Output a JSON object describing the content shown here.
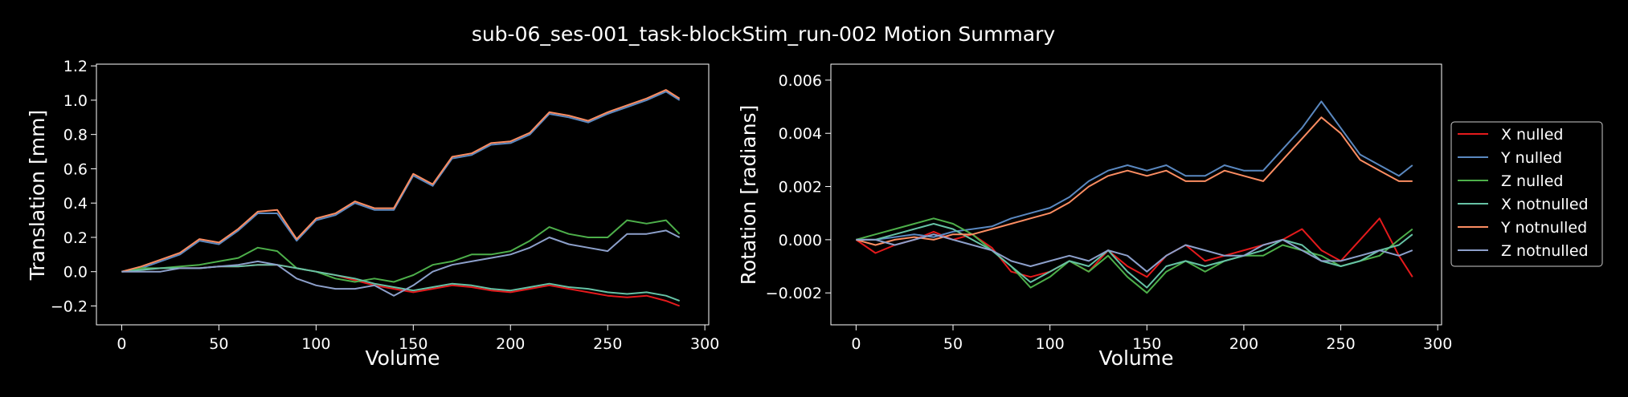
{
  "chart_data": {
    "title": "sub-06_ses-001_task-blockStim_run-002 Motion Summary",
    "legend": {
      "placement": "right",
      "entries": [
        "X nulled",
        "Y nulled",
        "Z nulled",
        "X notnulled",
        "Y notnulled",
        "Z notnulled"
      ]
    },
    "panels": [
      {
        "type": "line",
        "xlabel": "Volume",
        "ylabel": "Translation [mm]",
        "xlim": [
          -13,
          302
        ],
        "ylim": [
          -0.31,
          1.21
        ],
        "xticks": [
          0,
          50,
          100,
          150,
          200,
          250,
          300
        ],
        "yticks": [
          -0.2,
          0.0,
          0.2,
          0.4,
          0.6,
          0.8,
          1.0,
          1.2
        ],
        "ytick_decimals": 1,
        "grid": false,
        "series": [
          {
            "name": "X nulled",
            "color": "#e41a1c",
            "x": [
              0,
              10,
              20,
              30,
              40,
              50,
              60,
              70,
              80,
              90,
              100,
              110,
              120,
              130,
              140,
              150,
              160,
              170,
              180,
              190,
              200,
              210,
              220,
              230,
              240,
              250,
              260,
              270,
              280,
              287
            ],
            "y": [
              0.0,
              0.01,
              0.02,
              0.02,
              0.02,
              0.03,
              0.03,
              0.04,
              0.04,
              0.02,
              0.0,
              -0.02,
              -0.05,
              -0.08,
              -0.1,
              -0.12,
              -0.1,
              -0.08,
              -0.09,
              -0.11,
              -0.12,
              -0.1,
              -0.08,
              -0.1,
              -0.12,
              -0.14,
              -0.15,
              -0.14,
              -0.17,
              -0.2
            ]
          },
          {
            "name": "Y nulled",
            "color": "#5a88c0",
            "x": [
              0,
              10,
              20,
              30,
              40,
              50,
              60,
              70,
              80,
              90,
              100,
              110,
              120,
              130,
              140,
              150,
              160,
              170,
              180,
              190,
              200,
              210,
              220,
              230,
              240,
              250,
              260,
              270,
              280,
              287
            ],
            "y": [
              0.0,
              0.02,
              0.06,
              0.1,
              0.18,
              0.16,
              0.24,
              0.34,
              0.34,
              0.18,
              0.3,
              0.33,
              0.4,
              0.36,
              0.36,
              0.56,
              0.5,
              0.66,
              0.68,
              0.74,
              0.75,
              0.8,
              0.92,
              0.9,
              0.87,
              0.92,
              0.96,
              1.0,
              1.05,
              1.0
            ]
          },
          {
            "name": "Z nulled",
            "color": "#4daf4a",
            "x": [
              0,
              10,
              20,
              30,
              40,
              50,
              60,
              70,
              80,
              90,
              100,
              110,
              120,
              130,
              140,
              150,
              160,
              170,
              180,
              190,
              200,
              210,
              220,
              230,
              240,
              250,
              260,
              270,
              280,
              287
            ],
            "y": [
              0.0,
              0.02,
              0.02,
              0.03,
              0.04,
              0.06,
              0.08,
              0.14,
              0.12,
              0.02,
              0.0,
              -0.04,
              -0.06,
              -0.04,
              -0.06,
              -0.02,
              0.04,
              0.06,
              0.1,
              0.1,
              0.12,
              0.18,
              0.26,
              0.22,
              0.2,
              0.2,
              0.3,
              0.28,
              0.3,
              0.22
            ]
          },
          {
            "name": "X notnulled",
            "color": "#66c2a5",
            "x": [
              0,
              10,
              20,
              30,
              40,
              50,
              60,
              70,
              80,
              90,
              100,
              110,
              120,
              130,
              140,
              150,
              160,
              170,
              180,
              190,
              200,
              210,
              220,
              230,
              240,
              250,
              260,
              270,
              280,
              287
            ],
            "y": [
              0.0,
              0.01,
              0.02,
              0.02,
              0.02,
              0.03,
              0.03,
              0.04,
              0.04,
              0.02,
              0.0,
              -0.02,
              -0.04,
              -0.07,
              -0.09,
              -0.11,
              -0.09,
              -0.07,
              -0.08,
              -0.1,
              -0.11,
              -0.09,
              -0.07,
              -0.09,
              -0.1,
              -0.12,
              -0.13,
              -0.12,
              -0.14,
              -0.17
            ]
          },
          {
            "name": "Y notnulled",
            "color": "#fc8d62",
            "x": [
              0,
              10,
              20,
              30,
              40,
              50,
              60,
              70,
              80,
              90,
              100,
              110,
              120,
              130,
              140,
              150,
              160,
              170,
              180,
              190,
              200,
              210,
              220,
              230,
              240,
              250,
              260,
              270,
              280,
              287
            ],
            "y": [
              0.0,
              0.03,
              0.07,
              0.11,
              0.19,
              0.17,
              0.25,
              0.35,
              0.36,
              0.19,
              0.31,
              0.34,
              0.41,
              0.37,
              0.37,
              0.57,
              0.51,
              0.67,
              0.69,
              0.75,
              0.76,
              0.81,
              0.93,
              0.91,
              0.88,
              0.93,
              0.97,
              1.01,
              1.06,
              1.01
            ]
          },
          {
            "name": "Z notnulled",
            "color": "#8da0cb",
            "x": [
              0,
              10,
              20,
              30,
              40,
              50,
              60,
              70,
              80,
              90,
              100,
              110,
              120,
              130,
              140,
              150,
              160,
              170,
              180,
              190,
              200,
              210,
              220,
              230,
              240,
              250,
              260,
              270,
              280,
              287
            ],
            "y": [
              0.0,
              0.0,
              0.0,
              0.02,
              0.02,
              0.03,
              0.04,
              0.06,
              0.04,
              -0.04,
              -0.08,
              -0.1,
              -0.1,
              -0.08,
              -0.14,
              -0.08,
              0.0,
              0.04,
              0.06,
              0.08,
              0.1,
              0.14,
              0.2,
              0.16,
              0.14,
              0.12,
              0.22,
              0.22,
              0.24,
              0.2
            ]
          }
        ]
      },
      {
        "type": "line",
        "xlabel": "Volume",
        "ylabel": "Rotation [radians]",
        "xlim": [
          -13,
          302
        ],
        "ylim": [
          -0.0032,
          0.0066
        ],
        "xticks": [
          0,
          50,
          100,
          150,
          200,
          250,
          300
        ],
        "yticks": [
          -0.002,
          0.0,
          0.002,
          0.004,
          0.006
        ],
        "ytick_decimals": 3,
        "grid": false,
        "series": [
          {
            "name": "X nulled",
            "color": "#e41a1c",
            "x": [
              0,
              10,
              20,
              30,
              40,
              50,
              60,
              70,
              80,
              90,
              100,
              110,
              120,
              130,
              140,
              150,
              160,
              170,
              180,
              190,
              200,
              210,
              220,
              230,
              240,
              250,
              260,
              270,
              280,
              287
            ],
            "y": [
              0.0,
              -0.0005,
              -0.0002,
              0.0,
              0.0003,
              0.0,
              0.0002,
              -0.0003,
              -0.0012,
              -0.0014,
              -0.0012,
              -0.0008,
              -0.0012,
              -0.0004,
              -0.001,
              -0.0014,
              -0.0006,
              -0.0002,
              -0.0008,
              -0.0006,
              -0.0004,
              -0.0002,
              0.0,
              0.0004,
              -0.0004,
              -0.0008,
              0.0,
              0.0008,
              -0.0006,
              -0.0014
            ]
          },
          {
            "name": "Y nulled",
            "color": "#5a88c0",
            "x": [
              0,
              10,
              20,
              30,
              40,
              50,
              60,
              70,
              80,
              90,
              100,
              110,
              120,
              130,
              140,
              150,
              160,
              170,
              180,
              190,
              200,
              210,
              220,
              230,
              240,
              250,
              260,
              270,
              280,
              287
            ],
            "y": [
              0.0,
              0.0,
              0.0001,
              0.0002,
              0.0001,
              0.0003,
              0.0004,
              0.0005,
              0.0008,
              0.001,
              0.0012,
              0.0016,
              0.0022,
              0.0026,
              0.0028,
              0.0026,
              0.0028,
              0.0024,
              0.0024,
              0.0028,
              0.0026,
              0.0026,
              0.0034,
              0.0042,
              0.0052,
              0.0042,
              0.0032,
              0.0028,
              0.0024,
              0.0028
            ]
          },
          {
            "name": "Z nulled",
            "color": "#4daf4a",
            "x": [
              0,
              10,
              20,
              30,
              40,
              50,
              60,
              70,
              80,
              90,
              100,
              110,
              120,
              130,
              140,
              150,
              160,
              170,
              180,
              190,
              200,
              210,
              220,
              230,
              240,
              250,
              260,
              270,
              280,
              287
            ],
            "y": [
              0.0,
              0.0002,
              0.0004,
              0.0006,
              0.0008,
              0.0006,
              0.0002,
              -0.0004,
              -0.001,
              -0.0018,
              -0.0014,
              -0.0008,
              -0.0012,
              -0.0006,
              -0.0014,
              -0.002,
              -0.0012,
              -0.0008,
              -0.0012,
              -0.0008,
              -0.0006,
              -0.0006,
              -0.0002,
              -0.0004,
              -0.0006,
              -0.001,
              -0.0008,
              -0.0006,
              0.0,
              0.0004
            ]
          },
          {
            "name": "X notnulled",
            "color": "#66c2a5",
            "x": [
              0,
              10,
              20,
              30,
              40,
              50,
              60,
              70,
              80,
              90,
              100,
              110,
              120,
              130,
              140,
              150,
              160,
              170,
              180,
              190,
              200,
              210,
              220,
              230,
              240,
              250,
              260,
              270,
              280,
              287
            ],
            "y": [
              0.0,
              0.0,
              0.0002,
              0.0004,
              0.0006,
              0.0004,
              0.0,
              -0.0004,
              -0.001,
              -0.0016,
              -0.0012,
              -0.0008,
              -0.001,
              -0.0004,
              -0.0012,
              -0.0018,
              -0.001,
              -0.0008,
              -0.001,
              -0.0008,
              -0.0006,
              -0.0004,
              0.0,
              -0.0002,
              -0.0008,
              -0.001,
              -0.0008,
              -0.0004,
              -0.0002,
              0.0002
            ]
          },
          {
            "name": "Y notnulled",
            "color": "#fc8d62",
            "x": [
              0,
              10,
              20,
              30,
              40,
              50,
              60,
              70,
              80,
              90,
              100,
              110,
              120,
              130,
              140,
              150,
              160,
              170,
              180,
              190,
              200,
              210,
              220,
              230,
              240,
              250,
              260,
              270,
              280,
              287
            ],
            "y": [
              0.0,
              -0.0002,
              0.0,
              0.0001,
              0.0,
              0.0002,
              0.0002,
              0.0004,
              0.0006,
              0.0008,
              0.001,
              0.0014,
              0.002,
              0.0024,
              0.0026,
              0.0024,
              0.0026,
              0.0022,
              0.0022,
              0.0026,
              0.0024,
              0.0022,
              0.003,
              0.0038,
              0.0046,
              0.004,
              0.003,
              0.0026,
              0.0022,
              0.0022
            ]
          },
          {
            "name": "Z notnulled",
            "color": "#8da0cb",
            "x": [
              0,
              10,
              20,
              30,
              40,
              50,
              60,
              70,
              80,
              90,
              100,
              110,
              120,
              130,
              140,
              150,
              160,
              170,
              180,
              190,
              200,
              210,
              220,
              230,
              240,
              250,
              260,
              270,
              280,
              287
            ],
            "y": [
              0.0,
              0.0,
              -0.0002,
              0.0,
              0.0002,
              0.0,
              -0.0002,
              -0.0004,
              -0.0008,
              -0.001,
              -0.0008,
              -0.0006,
              -0.0008,
              -0.0004,
              -0.0006,
              -0.0012,
              -0.0006,
              -0.0002,
              -0.0004,
              -0.0006,
              -0.0006,
              -0.0002,
              0.0,
              -0.0004,
              -0.0008,
              -0.0008,
              -0.0006,
              -0.0004,
              -0.0006,
              -0.0004
            ]
          }
        ]
      }
    ]
  }
}
